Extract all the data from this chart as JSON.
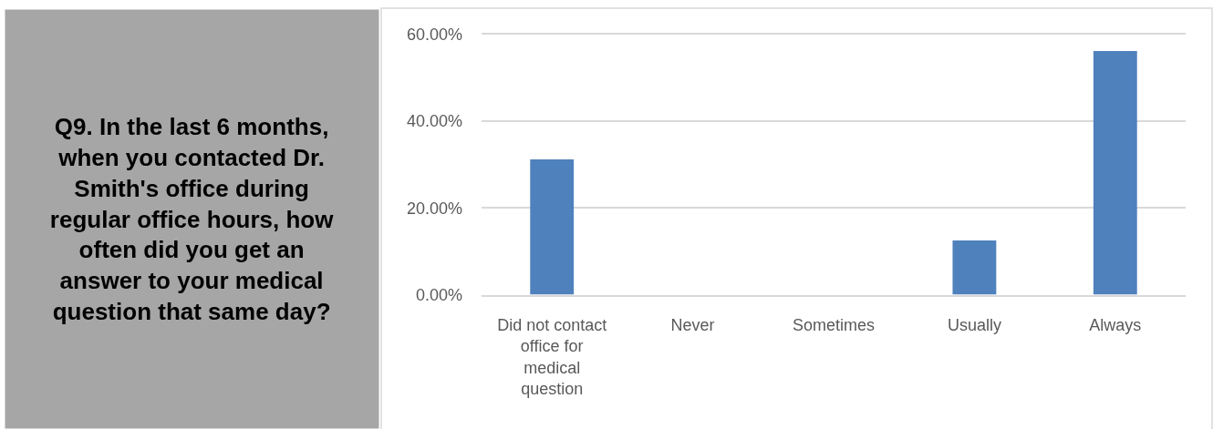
{
  "chart_data": {
    "type": "bar",
    "title": "Q9. In the last 6 months, when you contacted Dr. Smith's office during regular office hours, how often did you get an answer to your medical question that same day?",
    "categories": [
      "Did not contact office for medical question",
      "Never",
      "Sometimes",
      "Usually",
      "Always"
    ],
    "values": [
      31.2,
      0,
      0,
      12.5,
      56.2
    ],
    "color": "#4f81bd",
    "ylim": [
      0,
      60
    ],
    "yticks": [
      {
        "value": 0,
        "label": "0.00%"
      },
      {
        "value": 20,
        "label": "20.00%"
      },
      {
        "value": 40,
        "label": "40.00%"
      },
      {
        "value": 60,
        "label": "60.00%"
      }
    ],
    "grid": "y"
  }
}
